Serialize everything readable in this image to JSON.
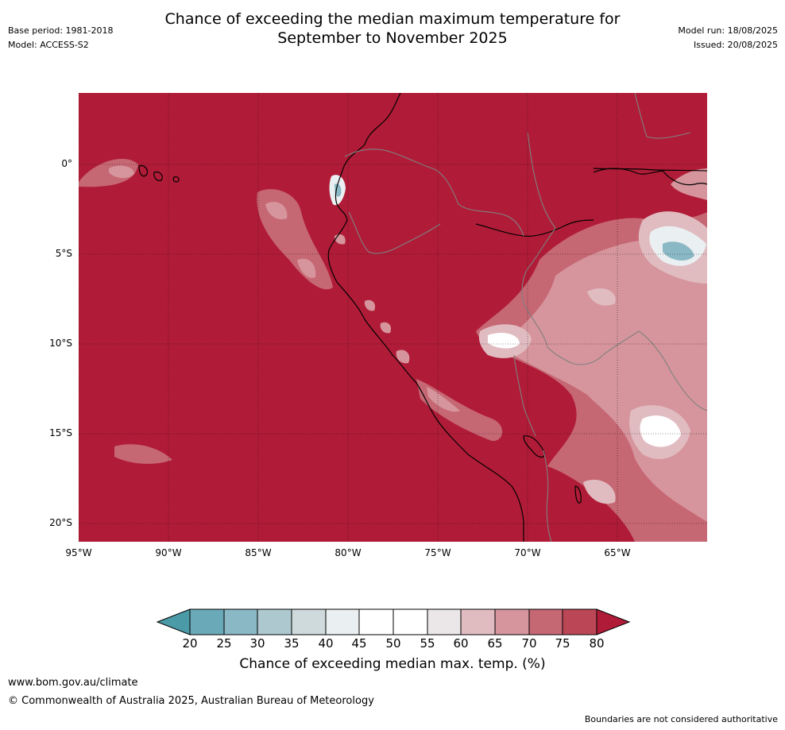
{
  "header": {
    "base_period": "Base period: 1981-2018",
    "model": "Model: ACCESS-S2",
    "title_line1": "Chance of exceeding the median maximum temperature for",
    "title_line2": "September to November 2025",
    "model_run": "Model run: 18/08/2025",
    "issued": "Issued: 20/08/2025"
  },
  "map": {
    "lat_ticks": [
      "0°",
      "5°S",
      "10°S",
      "15°S",
      "20°S"
    ],
    "lon_ticks": [
      "95°W",
      "90°W",
      "85°W",
      "80°W",
      "75°W",
      "70°W",
      "65°W"
    ],
    "background_color": "#b01c37",
    "coast_color": "#000000",
    "border_color": "#808080"
  },
  "colorbar": {
    "labels": [
      "20",
      "25",
      "30",
      "35",
      "40",
      "45",
      "50",
      "55",
      "60",
      "65",
      "70",
      "75",
      "80"
    ],
    "colors": [
      "#4a9aa8",
      "#6aaab8",
      "#8ab8c4",
      "#adc9cf",
      "#cfdadc",
      "#eaeff1",
      "#ffffff",
      "#ffffff",
      "#ebe7e8",
      "#e0bcc1",
      "#d6959c",
      "#c66774",
      "#bb4656",
      "#b01c37"
    ],
    "title": "Chance of exceeding median max. temp. (%)"
  },
  "footer": {
    "url": "www.bom.gov.au/climate",
    "copyright": "© Commonwealth of Australia 2025, Australian Bureau of Meteorology",
    "disclaimer": "Boundaries are not considered authoritative"
  }
}
